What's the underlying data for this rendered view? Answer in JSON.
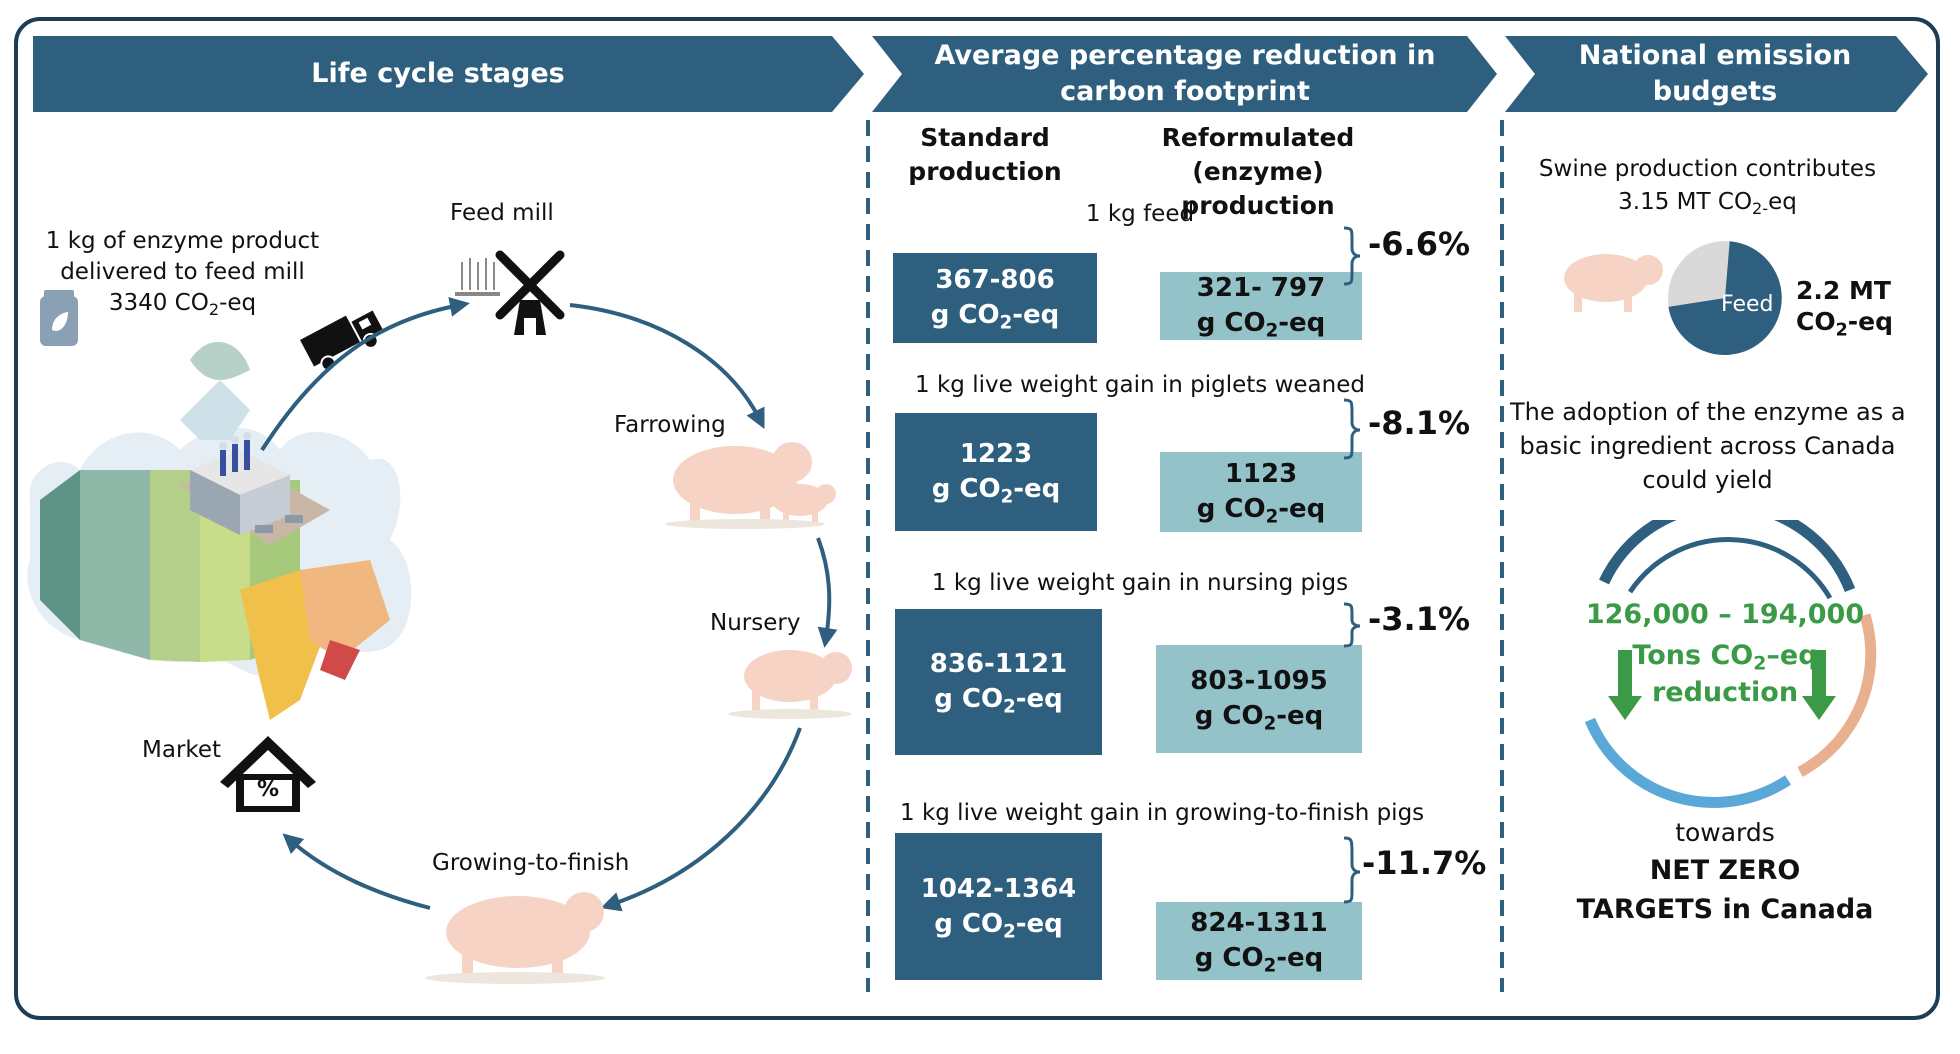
{
  "headers": {
    "lifecycle": "Life cycle stages",
    "reduction": "Average percentage reduction in carbon footprint",
    "national": "National emission budgets"
  },
  "lifecycle": {
    "enzyme_line1": "1 kg of enzyme product",
    "enzyme_line2": "delivered to feed mill",
    "enzyme_line3_pre": "3340 CO",
    "enzyme_line3_sub": "2",
    "enzyme_line3_post": "-eq",
    "stages": {
      "feed_mill": "Feed mill",
      "farrowing": "Farrowing",
      "nursery": "Nursery",
      "growing": "Growing-to-finish",
      "market": "Market"
    },
    "market_icon_symbol": "%"
  },
  "comparison": {
    "col_standard_l1": "Standard",
    "col_standard_l2": "production",
    "col_reform_l1": "Reformulated (enzyme)",
    "col_reform_l2": "production",
    "unit_pre": "g CO",
    "unit_sub": "2",
    "unit_post": "-eq",
    "rows": [
      {
        "label": "1 kg feed",
        "standard": "367-806",
        "reformulated": "321- 797",
        "reduction": "-6.6%"
      },
      {
        "label": "1 kg live weight gain in piglets weaned",
        "standard": "1223",
        "reformulated": "1123",
        "reduction": "-8.1%"
      },
      {
        "label": "1 kg live weight gain in nursing pigs",
        "standard": "836-1121",
        "reformulated": "803-1095",
        "reduction": "-3.1%"
      },
      {
        "label": "1 kg live weight gain in growing-to-finish pigs",
        "standard": "1042-1364",
        "reformulated": "824-1311",
        "reduction": "-11.7%"
      }
    ]
  },
  "national": {
    "swine_line1": "Swine production contributes",
    "swine_line2_pre": "3.15  MT CO",
    "swine_line2_sub": "2-",
    "swine_line2_post": "eq",
    "pie_label": "Feed",
    "feed_value_l1": "2.2 MT",
    "feed_value_l2_pre": "CO",
    "feed_value_l2_sub": "2",
    "feed_value_l2_post": "-eq",
    "adoption_l1": "The adoption of the enzyme as a",
    "adoption_l2": "basic ingredient across Canada",
    "adoption_l3": "could yield",
    "range": "126,000 – 194,000",
    "tons_pre": "Tons CO",
    "tons_sub": "2",
    "tons_post": "–eq",
    "reduction_word": "reduction",
    "towards": "towards",
    "netzero_l1": "NET ZERO",
    "netzero_l2": "TARGETS in Canada"
  },
  "colors": {
    "navy": "#2e5f7f",
    "frame": "#1c3d55",
    "light_teal": "#93c2c8",
    "green": "#3a9a45",
    "pig": "#f6d3c4",
    "pie_grey": "#d9d9d9",
    "ring_orange": "#e8b08e",
    "ring_blue": "#5aa8d8"
  }
}
